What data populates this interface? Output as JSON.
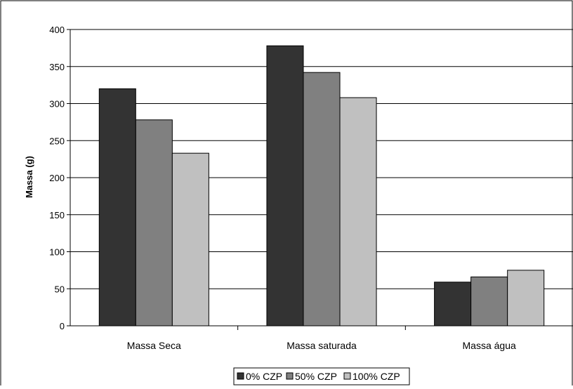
{
  "chart_data": {
    "type": "bar",
    "title": "",
    "xlabel": "",
    "ylabel": "Massa (g)",
    "categories": [
      "Massa Seca",
      "Massa saturada",
      "Massa água"
    ],
    "series": [
      {
        "name": "0% CZP",
        "values": [
          320,
          378,
          59
        ],
        "color": "#333333"
      },
      {
        "name": "50% CZP",
        "values": [
          278,
          342,
          66
        ],
        "color": "#808080"
      },
      {
        "name": "100% CZP",
        "values": [
          233,
          308,
          75
        ],
        "color": "#c0c0c0"
      }
    ],
    "ylim": [
      0,
      400
    ],
    "yticks": [
      0,
      50,
      100,
      150,
      200,
      250,
      300,
      350,
      400
    ],
    "grid": true,
    "legend_position": "bottom"
  }
}
